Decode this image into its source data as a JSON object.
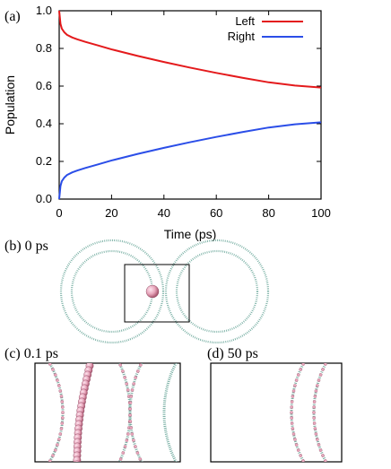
{
  "panels": {
    "a": {
      "label": "(a)"
    },
    "b": {
      "label": "(b) 0 ps"
    },
    "c": {
      "label": "(c) 0.1 ps"
    },
    "d": {
      "label": "(d) 50 ps"
    }
  },
  "colors": {
    "left": "#e41a1c",
    "right": "#2b4ee8",
    "membrane": "#6aa79a",
    "particle": "#e8a7bc",
    "particle_dark": "#b0607a"
  },
  "chart_data": {
    "type": "line",
    "title": "",
    "xlabel": "Time (ps)",
    "ylabel": "Population",
    "xlim": [
      0,
      100
    ],
    "ylim": [
      0.0,
      1.0
    ],
    "xticks": [
      0,
      20,
      40,
      60,
      80,
      100
    ],
    "yticks": [
      0.0,
      0.2,
      0.4,
      0.6,
      0.8,
      1.0
    ],
    "ytick_labels": [
      "0.0",
      "0.2",
      "0.4",
      "0.6",
      "0.8",
      "1.0"
    ],
    "legend_position": "top-right",
    "grid": false,
    "x": [
      0,
      0.5,
      1,
      2,
      3,
      5,
      7,
      10,
      15,
      20,
      30,
      40,
      50,
      60,
      70,
      80,
      90,
      100
    ],
    "series": [
      {
        "name": "Left",
        "color": "#e41a1c",
        "values": [
          1.0,
          0.93,
          0.905,
          0.885,
          0.872,
          0.858,
          0.848,
          0.835,
          0.815,
          0.795,
          0.76,
          0.728,
          0.698,
          0.67,
          0.644,
          0.62,
          0.603,
          0.592
        ]
      },
      {
        "name": "Right",
        "color": "#2b4ee8",
        "values": [
          0.0,
          0.07,
          0.095,
          0.115,
          0.128,
          0.142,
          0.152,
          0.165,
          0.185,
          0.205,
          0.24,
          0.272,
          0.302,
          0.33,
          0.356,
          0.38,
          0.397,
          0.408
        ]
      }
    ]
  }
}
